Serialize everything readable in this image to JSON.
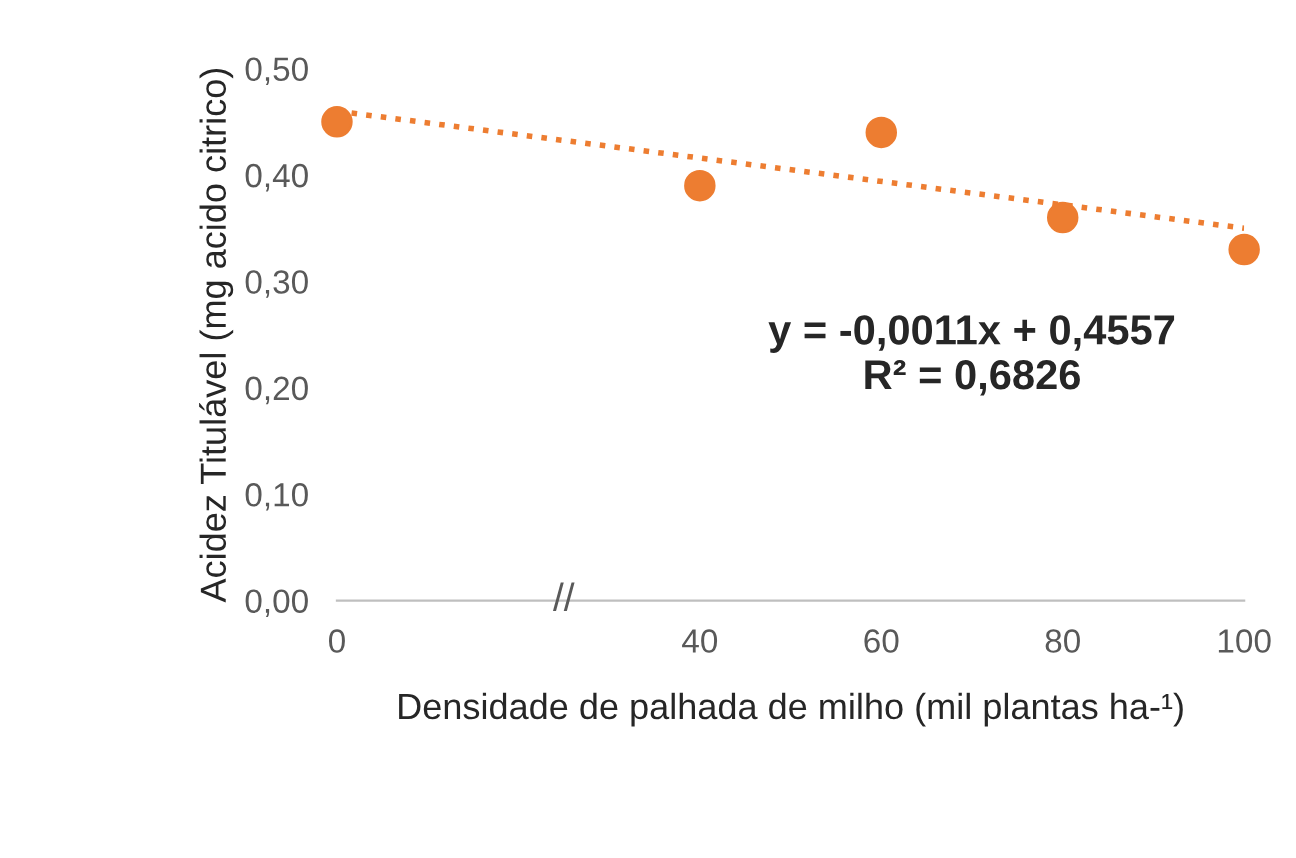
{
  "chart_data": {
    "type": "scatter",
    "xlabel": "Densidade de palhada de milho (mil plantas ha-¹)",
    "ylabel": "Acidez Titulável (mg acido citrico)",
    "series": [
      {
        "color": "#ed7d31",
        "x": [
          0,
          40,
          60,
          80,
          100
        ],
        "values": [
          0.45,
          0.39,
          0.44,
          0.36,
          0.33
        ],
        "marker": "circle"
      },
      {
        "type": "line",
        "color": "#ed7d31",
        "x": [
          0,
          100
        ],
        "values": [
          0.46,
          0.35
        ],
        "line_style": "dotted",
        "marker": "none"
      }
    ],
    "annotations": [
      "y = -0,0011x + 0,4557\nR² = 0,6826",
      "//"
    ],
    "xlim": [
      0,
      100
    ],
    "ylim": [
      0,
      0.5
    ],
    "xticks": [
      0,
      40,
      60,
      80,
      100
    ],
    "yticks": [
      {
        "value": 0,
        "label": "0,00"
      },
      {
        "value": 0.1,
        "label": "0,10"
      },
      {
        "value": 0.2,
        "label": "0,20"
      },
      {
        "value": 0.3,
        "label": "0,30"
      },
      {
        "value": 0.4,
        "label": "0,40"
      },
      {
        "value": 0.5,
        "label": "0,50"
      }
    ],
    "grid": false,
    "legend": false
  }
}
